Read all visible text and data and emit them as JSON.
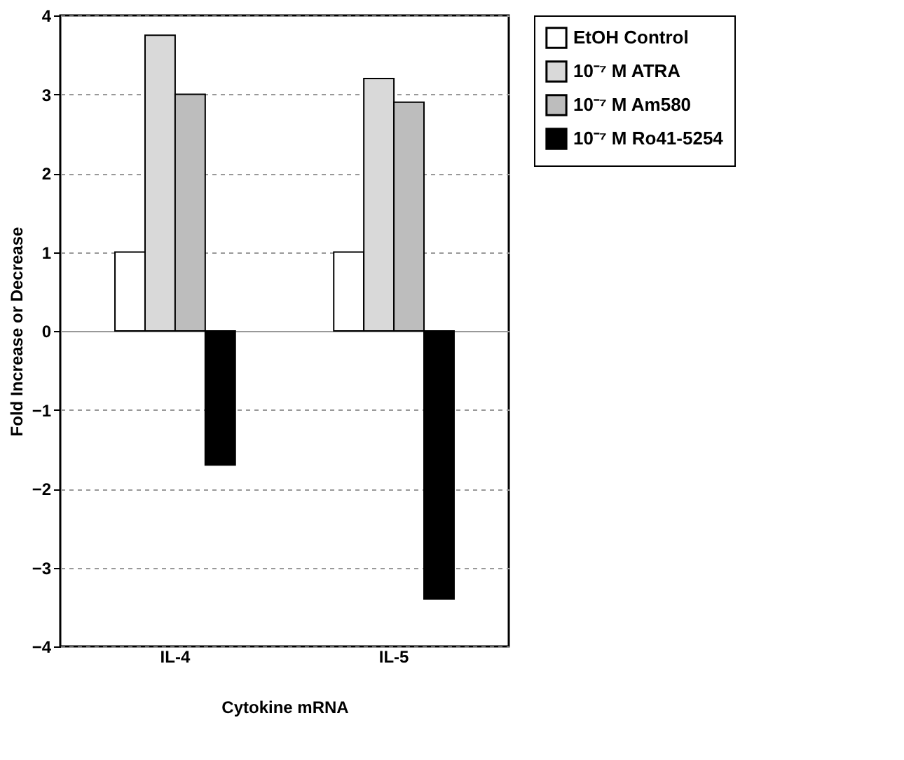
{
  "chart_data": {
    "type": "bar",
    "xlabel": "Cytokine mRNA",
    "ylabel": "Fold Increase or Decrease",
    "categories": [
      "IL-4",
      "IL-5"
    ],
    "series": [
      {
        "name": "EtOH Control",
        "color": "#ffffff",
        "values": [
          1,
          1
        ]
      },
      {
        "name": "10⁻⁷ M ATRA",
        "color": "#d9d9d9",
        "values": [
          3.75,
          3.2
        ]
      },
      {
        "name": "10⁻⁷ M Am580",
        "color": "#bdbdbd",
        "values": [
          3.0,
          2.9
        ]
      },
      {
        "name": "10⁻⁷ M Ro41-5254",
        "color": "#000000",
        "values": [
          -1.7,
          -3.4
        ]
      }
    ],
    "ylim": [
      -4,
      4
    ],
    "yticks": [
      -4,
      -3,
      -2,
      -1,
      0,
      1,
      2,
      3,
      4
    ],
    "grid": "y",
    "legend": "right"
  }
}
